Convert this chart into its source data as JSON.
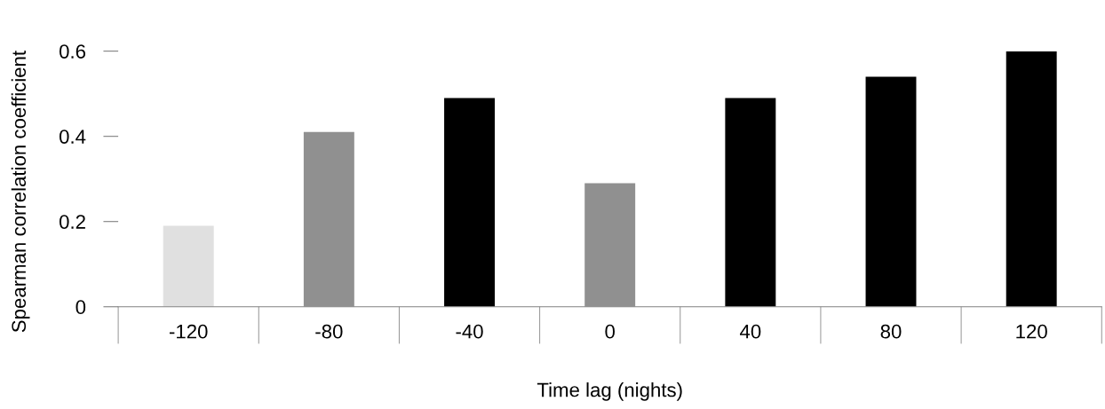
{
  "chart_data": {
    "type": "bar",
    "xlabel": "Time lag (nights)",
    "ylabel": "Spearman correlation coefficient",
    "categories": [
      "-120",
      "-80",
      "-40",
      "0",
      "40",
      "80",
      "120"
    ],
    "values": [
      0.19,
      0.41,
      0.49,
      0.29,
      0.49,
      0.54,
      0.6
    ],
    "colors": [
      "#e0e0e0",
      "#909090",
      "#000000",
      "#909090",
      "#000000",
      "#000000",
      "#000000"
    ],
    "ylim": [
      0,
      0.6
    ],
    "yticks": [
      0,
      0.2,
      0.4,
      0.6
    ],
    "grid": false,
    "legend": false
  }
}
